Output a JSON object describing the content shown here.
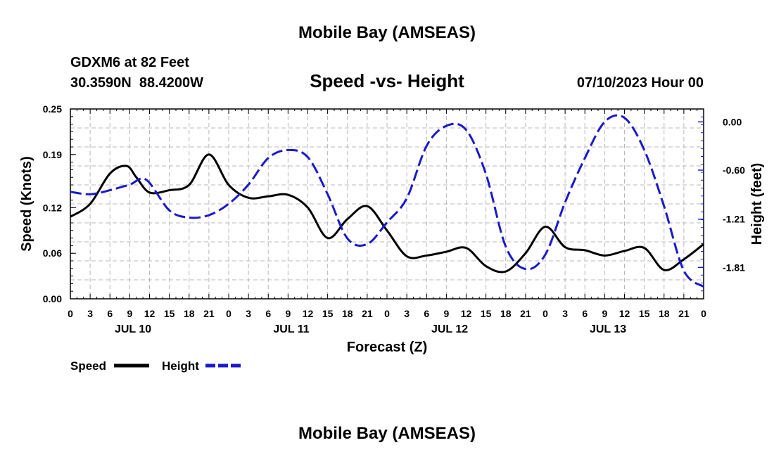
{
  "page": {
    "title": "Mobile Bay (AMSEAS)",
    "footer_title": "Mobile Bay (AMSEAS)",
    "station_line": "GDXM6 at 82 Feet",
    "coords_line": "30.3590N  88.4200W",
    "date_line": "07/10/2023 Hour 00"
  },
  "chart_data": {
    "type": "line",
    "title": "Speed -vs- Height",
    "xlabel": "Forecast (Z)",
    "ylabel": "Speed (Knots)",
    "ylabel_right": "Height (feet)",
    "x_range": [
      0,
      96
    ],
    "x_ticks": [
      0,
      3,
      6,
      9,
      12,
      15,
      18,
      21,
      24,
      27,
      30,
      33,
      36,
      39,
      42,
      45,
      48,
      51,
      54,
      57,
      60,
      63,
      66,
      69,
      72,
      75,
      78,
      81,
      84,
      87,
      90,
      93,
      96
    ],
    "x_tick_labels": [
      "0",
      "3",
      "6",
      "9",
      "12",
      "15",
      "18",
      "21",
      "0",
      "3",
      "6",
      "9",
      "12",
      "15",
      "18",
      "21",
      "0",
      "3",
      "6",
      "9",
      "12",
      "15",
      "18",
      "21",
      "0",
      "3",
      "6",
      "9",
      "12",
      "15",
      "18",
      "21",
      "0"
    ],
    "day_labels": [
      {
        "label": "JUL 10",
        "at": 9.5
      },
      {
        "label": "JUL 11",
        "at": 33.5
      },
      {
        "label": "JUL 12",
        "at": 57.5
      },
      {
        "label": "JUL 13",
        "at": 81.5
      }
    ],
    "ylim": [
      0,
      0.25
    ],
    "y_ticks": [
      0,
      0.06,
      0.12,
      0.19,
      0.25
    ],
    "y_tick_labels": [
      "0.00",
      "0.06",
      "0.12",
      "0.19",
      "0.25"
    ],
    "ylim_right": [
      -2.2,
      0.16
    ],
    "y_ticks_right": [
      0.0,
      -0.6,
      -1.21,
      -1.81
    ],
    "y_tick_labels_right": [
      "0.00",
      "-0.60",
      "-1.21",
      "-1.81"
    ],
    "grid": true,
    "legend_position": "bottom-left",
    "series": [
      {
        "name": "Speed",
        "axis": "left",
        "color": "#000000",
        "style": "solid",
        "x": [
          0,
          3,
          6,
          8.5,
          10,
          12,
          15,
          18,
          21,
          24,
          27,
          30,
          33,
          36,
          39,
          42,
          45,
          48,
          51,
          54,
          57,
          60,
          63,
          66,
          69,
          72,
          75,
          78,
          81,
          84,
          87,
          90,
          93,
          96
        ],
        "values": [
          0.108,
          0.125,
          0.165,
          0.175,
          0.16,
          0.14,
          0.143,
          0.15,
          0.19,
          0.15,
          0.133,
          0.135,
          0.137,
          0.12,
          0.08,
          0.105,
          0.122,
          0.09,
          0.056,
          0.057,
          0.062,
          0.067,
          0.043,
          0.036,
          0.06,
          0.095,
          0.068,
          0.064,
          0.057,
          0.063,
          0.067,
          0.038,
          0.052,
          0.072
        ]
      },
      {
        "name": "Height",
        "axis": "right",
        "color": "#1a1acc",
        "style": "dashed",
        "x": [
          0,
          3,
          6,
          9,
          11.5,
          15,
          18,
          21,
          24,
          27,
          30,
          33,
          36,
          39,
          42,
          45,
          48,
          51,
          54,
          57,
          60,
          63,
          66,
          69,
          72,
          75,
          78,
          81,
          84,
          87,
          90,
          93,
          96
        ],
        "values": [
          -0.87,
          -0.9,
          -0.85,
          -0.78,
          -0.72,
          -1.1,
          -1.19,
          -1.16,
          -1.02,
          -0.78,
          -0.45,
          -0.35,
          -0.44,
          -0.9,
          -1.45,
          -1.52,
          -1.25,
          -0.95,
          -0.3,
          -0.05,
          -0.1,
          -0.65,
          -1.55,
          -1.83,
          -1.65,
          -1.0,
          -0.45,
          0.0,
          0.05,
          -0.35,
          -1.05,
          -1.85,
          -2.05
        ]
      }
    ]
  }
}
